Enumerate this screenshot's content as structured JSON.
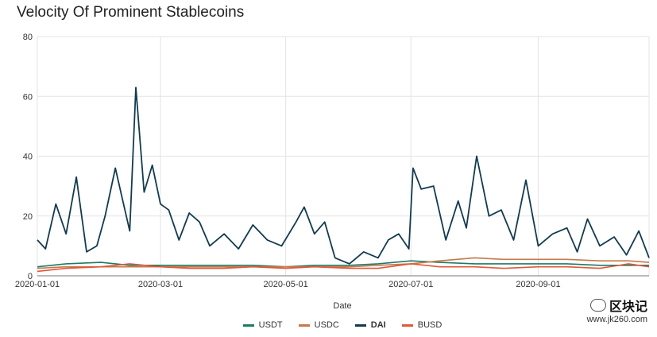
{
  "chart_data": {
    "type": "line",
    "title": "Velocity Of Prominent Stablecoins",
    "xlabel": "Date",
    "ylabel": "",
    "ylim": [
      0,
      80
    ],
    "yticks": [
      0,
      20,
      40,
      60,
      80
    ],
    "xlim": [
      "2020-01-01",
      "2020-10-25"
    ],
    "xticks": [
      "2020-01-01",
      "2020-03-01",
      "2020-05-01",
      "2020-07-01",
      "2020-09-01"
    ],
    "grid": true,
    "legend": "bottom",
    "series": [
      {
        "name": "USDT",
        "color": "#1e7a66",
        "x": [
          "2020-01-01",
          "2020-01-15",
          "2020-02-01",
          "2020-02-15",
          "2020-03-01",
          "2020-03-15",
          "2020-04-01",
          "2020-04-15",
          "2020-05-01",
          "2020-05-15",
          "2020-06-01",
          "2020-06-15",
          "2020-07-01",
          "2020-07-15",
          "2020-08-01",
          "2020-08-15",
          "2020-09-01",
          "2020-09-15",
          "2020-10-01",
          "2020-10-15",
          "2020-10-25"
        ],
        "y": [
          3,
          4,
          4.5,
          3.5,
          3.5,
          3.5,
          3.5,
          3.5,
          3,
          3.5,
          3.5,
          4,
          5,
          4.5,
          4,
          4,
          4,
          4,
          3.5,
          3.5,
          3.5
        ]
      },
      {
        "name": "USDC",
        "color": "#c8784a",
        "x": [
          "2020-01-01",
          "2020-01-15",
          "2020-02-01",
          "2020-02-15",
          "2020-03-01",
          "2020-03-15",
          "2020-04-01",
          "2020-04-15",
          "2020-05-01",
          "2020-05-15",
          "2020-06-01",
          "2020-06-15",
          "2020-07-01",
          "2020-07-15",
          "2020-08-01",
          "2020-08-15",
          "2020-09-01",
          "2020-09-15",
          "2020-10-01",
          "2020-10-15",
          "2020-10-25"
        ],
        "y": [
          2.5,
          3,
          3,
          3,
          3,
          3,
          3,
          3,
          3,
          3,
          3,
          3.5,
          4,
          5,
          6,
          5.5,
          5.5,
          5.5,
          5,
          5,
          4.5
        ]
      },
      {
        "name": "DAI",
        "color": "#123b4f",
        "x": [
          "2020-01-01",
          "2020-01-05",
          "2020-01-10",
          "2020-01-15",
          "2020-01-20",
          "2020-01-25",
          "2020-01-30",
          "2020-02-03",
          "2020-02-08",
          "2020-02-12",
          "2020-02-15",
          "2020-02-18",
          "2020-02-22",
          "2020-02-26",
          "2020-03-01",
          "2020-03-05",
          "2020-03-10",
          "2020-03-15",
          "2020-03-20",
          "2020-03-25",
          "2020-04-01",
          "2020-04-08",
          "2020-04-15",
          "2020-04-22",
          "2020-04-29",
          "2020-05-06",
          "2020-05-10",
          "2020-05-15",
          "2020-05-20",
          "2020-05-25",
          "2020-06-01",
          "2020-06-08",
          "2020-06-15",
          "2020-06-20",
          "2020-06-25",
          "2020-06-30",
          "2020-07-02",
          "2020-07-06",
          "2020-07-12",
          "2020-07-18",
          "2020-07-24",
          "2020-07-28",
          "2020-08-02",
          "2020-08-08",
          "2020-08-14",
          "2020-08-20",
          "2020-08-26",
          "2020-09-01",
          "2020-09-08",
          "2020-09-15",
          "2020-09-20",
          "2020-09-25",
          "2020-10-01",
          "2020-10-08",
          "2020-10-14",
          "2020-10-20",
          "2020-10-25"
        ],
        "y": [
          12,
          9,
          24,
          14,
          33,
          8,
          10,
          20,
          36,
          24,
          15,
          63,
          28,
          37,
          24,
          22,
          12,
          21,
          18,
          10,
          14,
          9,
          17,
          12,
          10,
          18,
          23,
          14,
          18,
          6,
          4,
          8,
          6,
          12,
          14,
          9,
          36,
          29,
          30,
          12,
          25,
          16,
          40,
          20,
          22,
          12,
          32,
          10,
          14,
          16,
          8,
          19,
          10,
          13,
          7,
          15,
          6
        ]
      },
      {
        "name": "BUSD",
        "color": "#e0583a",
        "x": [
          "2020-01-01",
          "2020-01-15",
          "2020-02-01",
          "2020-02-15",
          "2020-03-01",
          "2020-03-15",
          "2020-04-01",
          "2020-04-15",
          "2020-05-01",
          "2020-05-15",
          "2020-06-01",
          "2020-06-15",
          "2020-07-01",
          "2020-07-15",
          "2020-08-01",
          "2020-08-15",
          "2020-09-01",
          "2020-09-15",
          "2020-10-01",
          "2020-10-15",
          "2020-10-25"
        ],
        "y": [
          1.5,
          2.5,
          3,
          4,
          3,
          2.5,
          2.5,
          3,
          2.5,
          3,
          2.5,
          2.5,
          4,
          3,
          3,
          2.5,
          3,
          3,
          2.5,
          4,
          3
        ]
      }
    ]
  },
  "watermark": {
    "brand": "区块记",
    "url": "www.jk260.com"
  }
}
